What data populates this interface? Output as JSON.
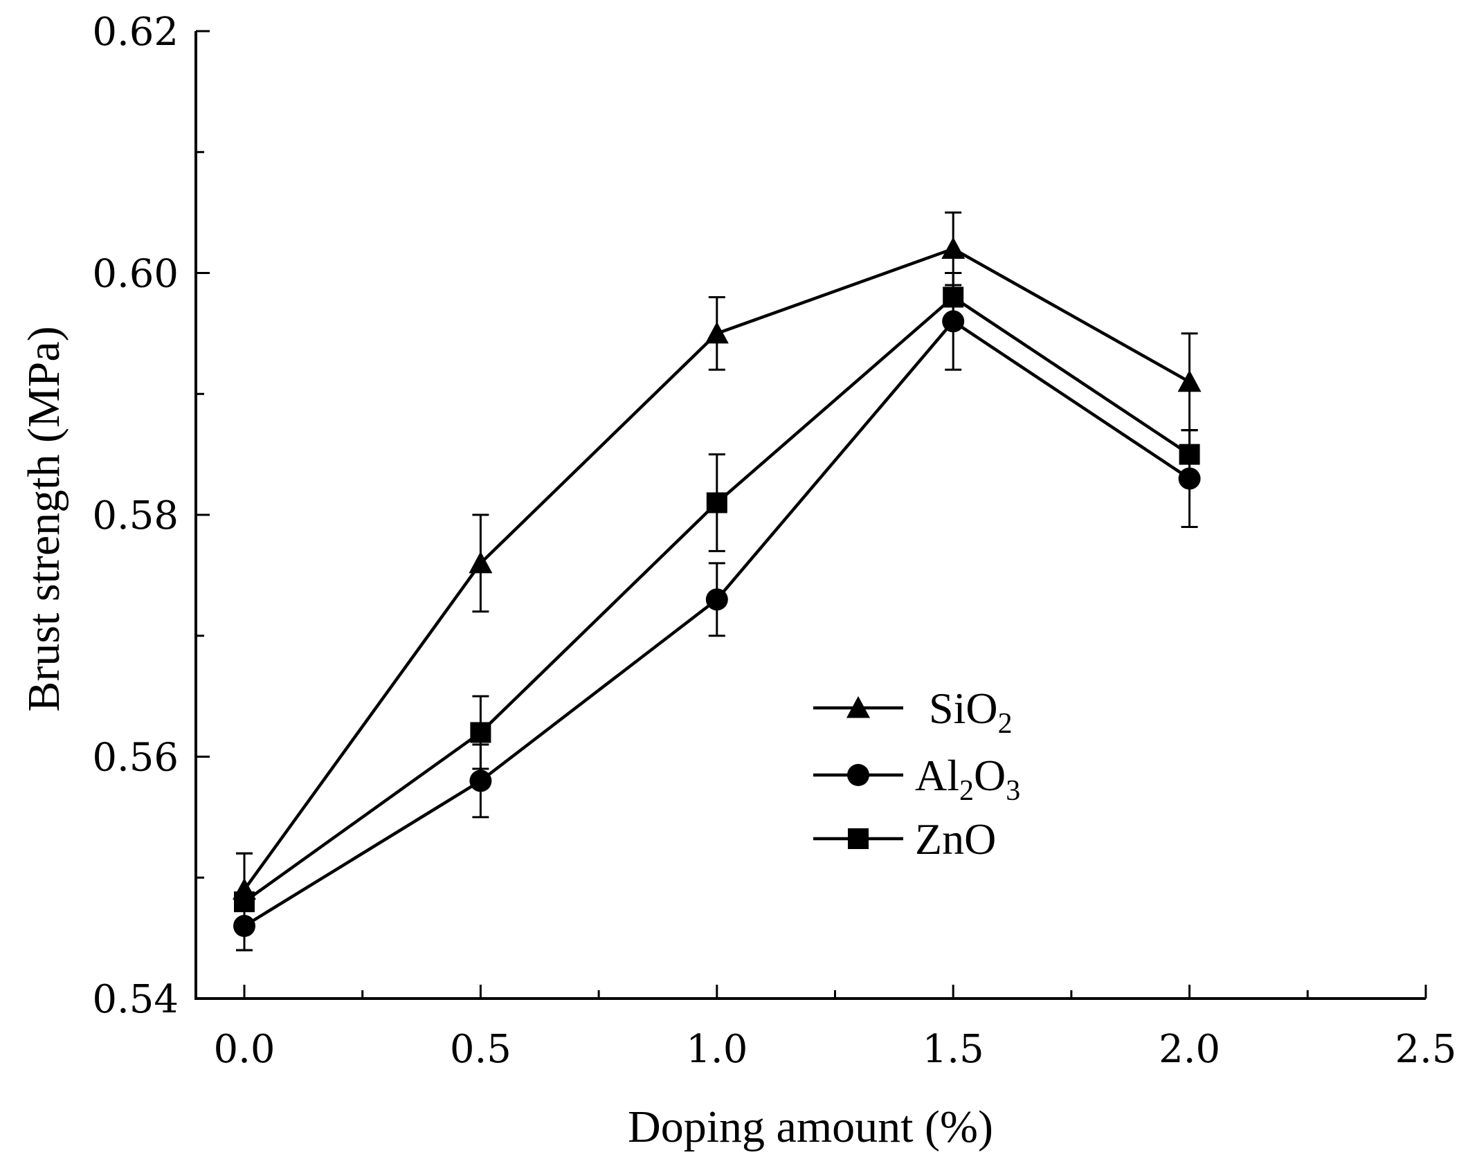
{
  "chart_data": {
    "type": "line",
    "title": "",
    "xlabel": "Doping amount (%)",
    "ylabel": "Brust strength (MPa)",
    "xlim": [
      -0.1,
      2.5
    ],
    "ylim": [
      0.54,
      0.62
    ],
    "x_ticks": [
      0.0,
      0.5,
      1.0,
      1.5,
      2.0,
      2.5
    ],
    "x_tick_labels": [
      "0.0",
      "0.5",
      "1.0",
      "1.5",
      "2.0",
      "2.5"
    ],
    "y_ticks": [
      0.54,
      0.56,
      0.58,
      0.6,
      0.62
    ],
    "y_tick_labels": [
      "0.54",
      "0.56",
      "0.58",
      "0.60",
      "0.62"
    ],
    "grid": false,
    "legend_position": "center-right",
    "x": [
      0.0,
      0.5,
      1.0,
      1.5,
      2.0
    ],
    "series": [
      {
        "name": "SiO2",
        "legend_main": "SiO",
        "legend_sub": "2",
        "legend_tail": "",
        "marker": "triangle",
        "values": [
          0.549,
          0.576,
          0.595,
          0.602,
          0.591
        ],
        "errors": [
          0.003,
          0.004,
          0.003,
          0.003,
          0.004
        ]
      },
      {
        "name": "Al2O3",
        "legend_main": "Al",
        "legend_sub": "2",
        "legend_tail": "O",
        "legend_sub2": "3",
        "marker": "circle",
        "values": [
          0.546,
          0.558,
          0.573,
          0.596,
          0.583
        ],
        "errors": [
          0.002,
          0.003,
          0.003,
          0.004,
          0.004
        ]
      },
      {
        "name": "ZnO",
        "legend_main": "ZnO",
        "legend_sub": "",
        "legend_tail": "",
        "marker": "square",
        "values": [
          0.548,
          0.562,
          0.581,
          0.598,
          0.585
        ],
        "errors": [
          0.004,
          0.003,
          0.004,
          0.002,
          0.002
        ]
      }
    ]
  }
}
